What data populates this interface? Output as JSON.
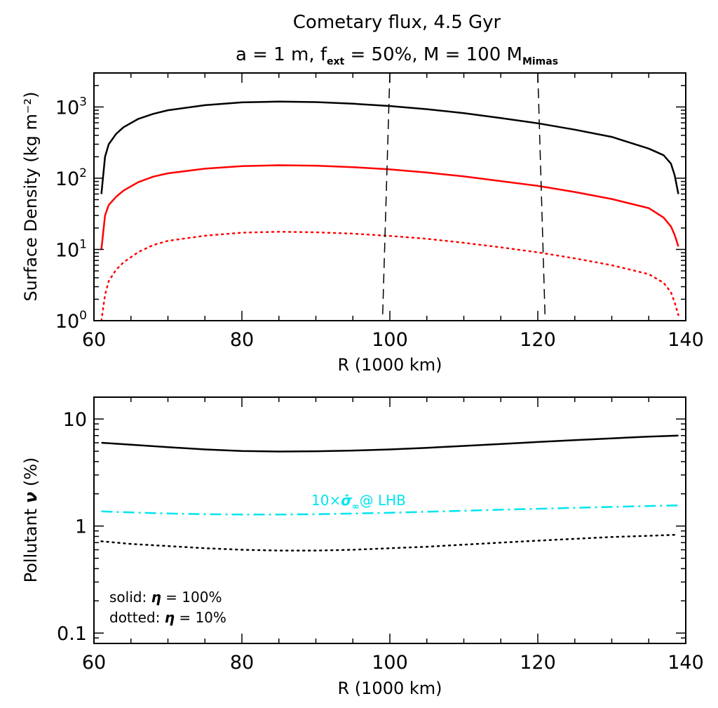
{
  "chart_data": [
    {
      "type": "line",
      "title": "Cometary flux, 4.5 Gyr",
      "subtitle": {
        "a_part": "a = 1 m, f",
        "a_sub": "ext",
        "b_part": " = 50%, M = 100 M",
        "b_sub": "Mimas"
      },
      "xlabel": "R (1000 km)",
      "ylabel": "Surface Density (kg m⁻²)",
      "xlim": [
        60,
        140
      ],
      "ylim": [
        1,
        3000
      ],
      "yscale": "log",
      "xticks": [
        60,
        80,
        100,
        120,
        140
      ],
      "xtick_labels": [
        "60",
        "80",
        "100",
        "120",
        "140"
      ],
      "yticks": [
        1,
        10,
        100,
        1000
      ],
      "ytick_labels": [
        {
          "base": "10",
          "exp": "0"
        },
        {
          "base": "10",
          "exp": "1"
        },
        {
          "base": "10",
          "exp": "2"
        },
        {
          "base": "10",
          "exp": "3"
        }
      ],
      "series": [
        {
          "color": "#000000",
          "style": "solid",
          "x": [
            61,
            61.5,
            62,
            63,
            64,
            66,
            68,
            70,
            75,
            80,
            85,
            90,
            95,
            100,
            105,
            110,
            115,
            120,
            125,
            130,
            135,
            137,
            138,
            138.5,
            139
          ],
          "y": [
            60,
            200,
            300,
            420,
            520,
            680,
            800,
            900,
            1060,
            1160,
            1190,
            1170,
            1110,
            1030,
            930,
            820,
            700,
            590,
            480,
            380,
            260,
            210,
            160,
            110,
            60
          ]
        },
        {
          "color": "#ff0000",
          "style": "solid",
          "x": [
            61,
            61.5,
            62,
            63,
            64,
            66,
            68,
            70,
            75,
            80,
            85,
            90,
            95,
            100,
            105,
            110,
            115,
            120,
            125,
            130,
            135,
            137,
            138,
            138.5,
            139
          ],
          "y": [
            10,
            30,
            42,
            55,
            67,
            88,
            105,
            117,
            136,
            148,
            152,
            150,
            143,
            133,
            120,
            106,
            91,
            78,
            64,
            51,
            38,
            28,
            21,
            16,
            11
          ]
        },
        {
          "color": "#ff0000",
          "style": "dotted",
          "x": [
            61,
            61.5,
            62,
            63,
            64,
            66,
            68,
            70,
            75,
            80,
            85,
            90,
            95,
            100,
            105,
            110,
            115,
            120,
            125,
            130,
            135,
            137,
            138,
            138.5,
            139
          ],
          "y": [
            1,
            2.3,
            3.6,
            5.2,
            6.6,
            9.2,
            11.5,
            13.2,
            15.6,
            17.2,
            17.7,
            17.4,
            16.7,
            15.5,
            14.1,
            12.4,
            10.7,
            9.1,
            7.5,
            6,
            4.5,
            3.4,
            2.5,
            1.8,
            1.2
          ]
        },
        {
          "color": "#000000",
          "style": "dashed",
          "x": [
            100,
            99
          ],
          "y": [
            3000,
            1
          ]
        },
        {
          "color": "#000000",
          "style": "dashed",
          "x": [
            120,
            121
          ],
          "y": [
            3000,
            1
          ]
        }
      ]
    },
    {
      "type": "line",
      "xlabel": "R (1000 km)",
      "ylabel": {
        "part1": "Pollutant ",
        "symbol": "ν",
        "part2": " (%)"
      },
      "xlim": [
        60,
        140
      ],
      "ylim": [
        0.08,
        16
      ],
      "yscale": "log",
      "xticks": [
        60,
        80,
        100,
        120,
        140
      ],
      "xtick_labels": [
        "60",
        "80",
        "100",
        "120",
        "140"
      ],
      "yticks": [
        0.1,
        1,
        10
      ],
      "ytick_labels": [
        "0.1",
        "1",
        "10"
      ],
      "series": [
        {
          "color": "#000000",
          "style": "solid",
          "x": [
            61,
            65,
            70,
            75,
            80,
            85,
            90,
            95,
            100,
            105,
            110,
            115,
            120,
            125,
            130,
            135,
            139
          ],
          "y": [
            6.0,
            5.75,
            5.45,
            5.2,
            5.03,
            4.97,
            5.0,
            5.07,
            5.2,
            5.38,
            5.6,
            5.85,
            6.1,
            6.35,
            6.6,
            6.85,
            7.0
          ]
        },
        {
          "color": "#00e5ee",
          "style": "dashdot",
          "label": {
            "part1": "10×",
            "symbol": "σ̇",
            "sub": "∞",
            "part2": "@ LHB"
          },
          "x": [
            61,
            65,
            70,
            75,
            80,
            85,
            90,
            95,
            100,
            105,
            110,
            115,
            120,
            125,
            130,
            135,
            139
          ],
          "y": [
            1.37,
            1.34,
            1.31,
            1.29,
            1.28,
            1.28,
            1.29,
            1.31,
            1.33,
            1.36,
            1.39,
            1.42,
            1.45,
            1.48,
            1.51,
            1.54,
            1.56
          ]
        },
        {
          "color": "#000000",
          "style": "dotted",
          "x": [
            61,
            65,
            70,
            75,
            80,
            85,
            90,
            95,
            100,
            105,
            110,
            115,
            120,
            125,
            130,
            135,
            139
          ],
          "y": [
            0.72,
            0.68,
            0.65,
            0.62,
            0.6,
            0.59,
            0.59,
            0.6,
            0.62,
            0.64,
            0.67,
            0.7,
            0.73,
            0.76,
            0.79,
            0.81,
            0.83
          ]
        }
      ],
      "legend": {
        "line1": {
          "prefix": "solid: ",
          "symbol": "η",
          "suffix": " = 100%"
        },
        "line2": {
          "prefix": "dotted: ",
          "symbol": "η",
          "suffix": " = 10%"
        }
      }
    }
  ]
}
